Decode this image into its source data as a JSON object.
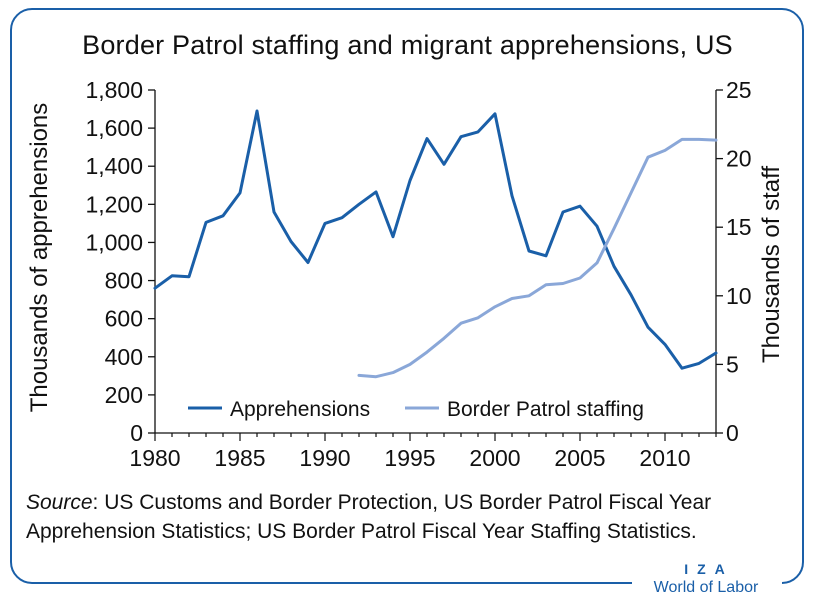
{
  "title": "Border Patrol staffing and migrant apprehensions, US",
  "source": {
    "label": "Source",
    "text": ": US Customs and Border Protection, US Border Patrol Fiscal Year Apprehension Statistics; US Border Patrol Fiscal Year Staffing Statistics."
  },
  "brand": {
    "top": "IZA",
    "bottom": "World of Labor",
    "color": "#1a5fa8"
  },
  "chart_data": {
    "type": "line",
    "title": "Border Patrol staffing and migrant apprehensions, US",
    "ylabel": "Thousands of apprehensions",
    "y2label": "Thousands of staff",
    "xlim": [
      1980,
      2013
    ],
    "ylim": [
      0,
      1800
    ],
    "y2lim": [
      0,
      25
    ],
    "x_ticks": [
      "1980",
      "1985",
      "1990",
      "1995",
      "2000",
      "2005",
      "2010"
    ],
    "y_ticks": [
      "0",
      "200",
      "400",
      "600",
      "800",
      "1,000",
      "1,200",
      "1,400",
      "1,600",
      "1,800"
    ],
    "y2_ticks": [
      "0",
      "5",
      "10",
      "15",
      "20",
      "25"
    ],
    "legend_position": "bottom-center",
    "series": [
      {
        "name": "Apprehensions",
        "axis": "left",
        "color": "#1a5fa8",
        "x": [
          1980,
          1981,
          1982,
          1983,
          1984,
          1985,
          1986,
          1987,
          1988,
          1989,
          1990,
          1991,
          1992,
          1993,
          1994,
          1995,
          1996,
          1997,
          1998,
          1999,
          2000,
          2001,
          2002,
          2003,
          2004,
          2005,
          2006,
          2007,
          2008,
          2009,
          2010,
          2011,
          2012,
          2013
        ],
        "y": [
          760,
          825,
          820,
          1105,
          1140,
          1260,
          1690,
          1160,
          1005,
          895,
          1100,
          1130,
          1200,
          1265,
          1030,
          1325,
          1545,
          1410,
          1555,
          1580,
          1675,
          1245,
          955,
          930,
          1160,
          1190,
          1085,
          875,
          725,
          555,
          465,
          340,
          365,
          420
        ]
      },
      {
        "name": "Border Patrol staffing",
        "axis": "right",
        "color": "#8aa7d8",
        "x": [
          1992,
          1993,
          1994,
          1995,
          1996,
          1997,
          1998,
          1999,
          2000,
          2001,
          2002,
          2003,
          2004,
          2005,
          2006,
          2007,
          2008,
          2009,
          2010,
          2011,
          2012,
          2013
        ],
        "y": [
          4.2,
          4.1,
          4.4,
          5.0,
          5.9,
          6.9,
          8.0,
          8.4,
          9.2,
          9.8,
          10.0,
          10.8,
          10.9,
          11.3,
          12.4,
          14.9,
          17.5,
          20.1,
          20.6,
          21.4,
          21.4,
          21.35
        ]
      }
    ]
  }
}
